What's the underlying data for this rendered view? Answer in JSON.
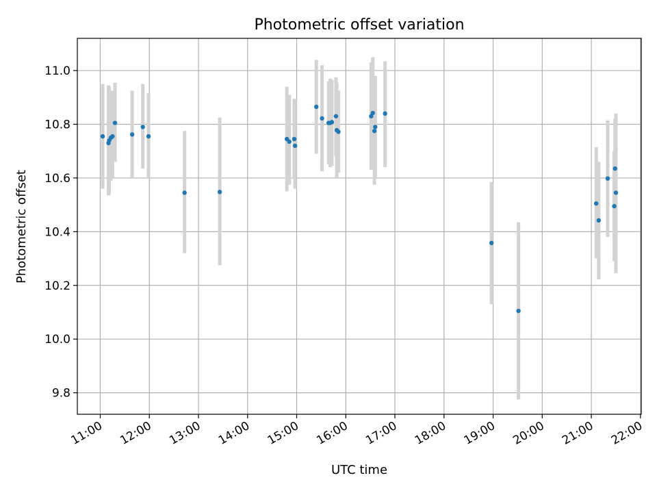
{
  "chart_data": {
    "type": "scatter",
    "title": "Photometric offset variation",
    "xlabel": "UTC time",
    "ylabel": "Photometric offset",
    "x_ticks": [
      "11:00",
      "12:00",
      "13:00",
      "14:00",
      "15:00",
      "16:00",
      "17:00",
      "18:00",
      "19:00",
      "20:00",
      "21:00",
      "22:00"
    ],
    "y_ticks": [
      "9.8",
      "10.0",
      "10.2",
      "10.4",
      "10.6",
      "10.8",
      "11.0"
    ],
    "xlim": [
      "10:32",
      "22:01"
    ],
    "ylim": [
      9.72,
      11.12
    ],
    "grid": true,
    "colors": {
      "point": "#1f77b4",
      "errorbar": "#d3d3d3",
      "grid": "#b0b0b0",
      "axes": "#000000"
    },
    "points": [
      {
        "t": "11:03",
        "y": 10.755,
        "ylo": 10.56,
        "yhi": 10.95
      },
      {
        "t": "11:10",
        "y": 10.73,
        "ylo": 10.535,
        "yhi": 10.945
      },
      {
        "t": "11:11",
        "y": 10.74,
        "ylo": 10.54,
        "yhi": 10.94
      },
      {
        "t": "11:13",
        "y": 10.75,
        "ylo": 10.59,
        "yhi": 10.92
      },
      {
        "t": "11:15",
        "y": 10.755,
        "ylo": 10.6,
        "yhi": 10.925
      },
      {
        "t": "11:18",
        "y": 10.805,
        "ylo": 10.66,
        "yhi": 10.955
      },
      {
        "t": "11:39",
        "y": 10.762,
        "ylo": 10.6,
        "yhi": 10.925
      },
      {
        "t": "11:52",
        "y": 10.79,
        "ylo": 10.635,
        "yhi": 10.95
      },
      {
        "t": "11:59",
        "y": 10.755,
        "ylo": 10.6,
        "yhi": 10.915
      },
      {
        "t": "12:43",
        "y": 10.545,
        "ylo": 10.32,
        "yhi": 10.775
      },
      {
        "t": "13:26",
        "y": 10.548,
        "ylo": 10.275,
        "yhi": 10.825
      },
      {
        "t": "14:48",
        "y": 10.745,
        "ylo": 10.55,
        "yhi": 10.94
      },
      {
        "t": "14:51",
        "y": 10.735,
        "ylo": 10.575,
        "yhi": 10.91
      },
      {
        "t": "14:57",
        "y": 10.745,
        "ylo": 10.595,
        "yhi": 10.895
      },
      {
        "t": "14:58",
        "y": 10.72,
        "ylo": 10.56,
        "yhi": 10.89
      },
      {
        "t": "15:24",
        "y": 10.865,
        "ylo": 10.69,
        "yhi": 11.04
      },
      {
        "t": "15:31",
        "y": 10.822,
        "ylo": 10.625,
        "yhi": 11.02
      },
      {
        "t": "15:39",
        "y": 10.805,
        "ylo": 10.65,
        "yhi": 10.96
      },
      {
        "t": "15:41",
        "y": 10.805,
        "ylo": 10.64,
        "yhi": 10.97
      },
      {
        "t": "15:43",
        "y": 10.808,
        "ylo": 10.645,
        "yhi": 10.965
      },
      {
        "t": "15:48",
        "y": 10.83,
        "ylo": 10.68,
        "yhi": 10.975
      },
      {
        "t": "15:49",
        "y": 10.778,
        "ylo": 10.6,
        "yhi": 10.955
      },
      {
        "t": "15:51",
        "y": 10.772,
        "ylo": 10.62,
        "yhi": 10.925
      },
      {
        "t": "16:31",
        "y": 10.83,
        "ylo": 10.63,
        "yhi": 11.03
      },
      {
        "t": "16:33",
        "y": 10.842,
        "ylo": 10.64,
        "yhi": 11.05
      },
      {
        "t": "16:35",
        "y": 10.775,
        "ylo": 10.575,
        "yhi": 10.97
      },
      {
        "t": "16:36",
        "y": 10.79,
        "ylo": 10.6,
        "yhi": 10.98
      },
      {
        "t": "16:48",
        "y": 10.84,
        "ylo": 10.64,
        "yhi": 11.035
      },
      {
        "t": "18:58",
        "y": 10.358,
        "ylo": 10.13,
        "yhi": 10.585
      },
      {
        "t": "19:31",
        "y": 10.105,
        "ylo": 9.775,
        "yhi": 10.435
      },
      {
        "t": "21:06",
        "y": 10.505,
        "ylo": 10.3,
        "yhi": 10.715
      },
      {
        "t": "21:09",
        "y": 10.442,
        "ylo": 10.222,
        "yhi": 10.66
      },
      {
        "t": "21:20",
        "y": 10.598,
        "ylo": 10.38,
        "yhi": 10.815
      },
      {
        "t": "21:28",
        "y": 10.495,
        "ylo": 10.29,
        "yhi": 10.7
      },
      {
        "t": "21:29",
        "y": 10.635,
        "ylo": 10.42,
        "yhi": 10.82
      },
      {
        "t": "21:30",
        "y": 10.545,
        "ylo": 10.245,
        "yhi": 10.84
      }
    ]
  }
}
